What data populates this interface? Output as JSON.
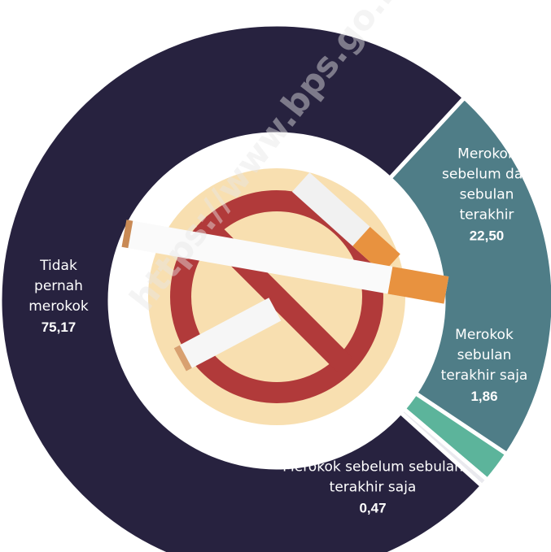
{
  "chart_data": {
    "type": "donut",
    "categories": [
      "Merokok sebelum dan sebulan terakhir",
      "Merokok sebulan terakhir saja",
      "Merokok sebelum sebulan terakhir saja",
      "Tidak pernah merokok"
    ],
    "values": [
      22.5,
      1.86,
      0.47,
      75.17
    ],
    "value_labels": [
      "22,50",
      "1,86",
      "0,47",
      "75,17"
    ],
    "colors": [
      "#4f7d87",
      "#5cb49b",
      "#e9e9ee",
      "#27223f"
    ],
    "watermark": "https://www.bps.go.id"
  }
}
